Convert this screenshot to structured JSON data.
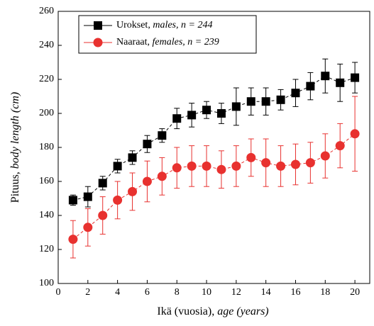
{
  "chart_data": {
    "type": "line",
    "x_label": "Ikä (vuosia),",
    "x_label_italic": "age (years)",
    "y_label": "Pituus,",
    "y_label_italic": "body length (cm)",
    "x": [
      1,
      2,
      3,
      4,
      5,
      6,
      7,
      8,
      9,
      10,
      11,
      12,
      13,
      14,
      15,
      16,
      17,
      18,
      19,
      20
    ],
    "series": [
      {
        "name": "Urokset,",
        "name_italic": "males, n = 244",
        "color": "#000000",
        "marker": "square",
        "values": [
          149,
          151,
          159,
          169,
          174,
          182,
          187,
          197,
          199,
          202,
          200,
          204,
          207,
          207,
          208,
          212,
          216,
          222,
          218,
          221
        ],
        "errors": [
          3,
          6,
          4,
          4,
          4,
          5,
          4,
          6,
          7,
          5,
          6,
          11,
          8,
          8,
          6,
          8,
          8,
          10,
          11,
          9
        ]
      },
      {
        "name": "Naaraat,",
        "name_italic": "females, n = 239",
        "color": "#e8312f",
        "marker": "circle",
        "values": [
          126,
          133,
          140,
          149,
          154,
          160,
          163,
          168,
          169,
          169,
          167,
          169,
          174,
          171,
          169,
          170,
          171,
          175,
          181,
          188
        ],
        "errors": [
          11,
          11,
          11,
          11,
          11,
          12,
          11,
          12,
          12,
          12,
          11,
          12,
          11,
          14,
          12,
          12,
          12,
          13,
          13,
          22
        ]
      }
    ],
    "xlim": [
      0,
      21
    ],
    "xticks": [
      0,
      2,
      4,
      6,
      8,
      10,
      12,
      14,
      16,
      18,
      20
    ],
    "ylim": [
      100,
      260
    ],
    "yticks": [
      100,
      120,
      140,
      160,
      180,
      200,
      220,
      240,
      260
    ]
  }
}
